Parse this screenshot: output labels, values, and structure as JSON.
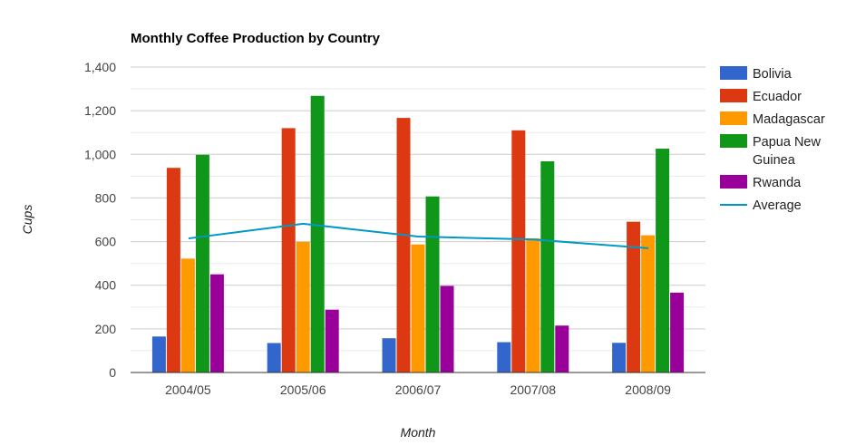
{
  "chart_data": {
    "type": "bar",
    "title": "Monthly Coffee Production by Country",
    "xlabel": "Month",
    "ylabel": "Cups",
    "ylim": [
      0,
      1400
    ],
    "yticks": [
      "0",
      "200",
      "400",
      "600",
      "800",
      "1,000",
      "1,200",
      "1,400"
    ],
    "ytick_values": [
      0,
      200,
      400,
      600,
      800,
      1000,
      1200,
      1400
    ],
    "minor_gridlines": true,
    "grid": true,
    "legend_position": "right",
    "categories": [
      "2004/05",
      "2005/06",
      "2006/07",
      "2007/08",
      "2008/09"
    ],
    "series": [
      {
        "name": "Bolivia",
        "type": "bar",
        "color": "#3366cc",
        "values": [
          165,
          135,
          157,
          139,
          136
        ]
      },
      {
        "name": "Ecuador",
        "type": "bar",
        "color": "#dc3912",
        "values": [
          938,
          1120,
          1167,
          1110,
          691
        ]
      },
      {
        "name": "Madagascar",
        "type": "bar",
        "color": "#ff9900",
        "values": [
          522,
          599,
          587,
          615,
          629
        ]
      },
      {
        "name": "Papua New Guinea",
        "type": "bar",
        "color": "#109618",
        "values": [
          998,
          1268,
          807,
          968,
          1026
        ]
      },
      {
        "name": "Rwanda",
        "type": "bar",
        "color": "#990099",
        "values": [
          450,
          288,
          397,
          215,
          366
        ]
      },
      {
        "name": "Average",
        "type": "line",
        "color": "#0099c6",
        "values": [
          614.6,
          682,
          623,
          609.4,
          569.6
        ]
      }
    ]
  }
}
